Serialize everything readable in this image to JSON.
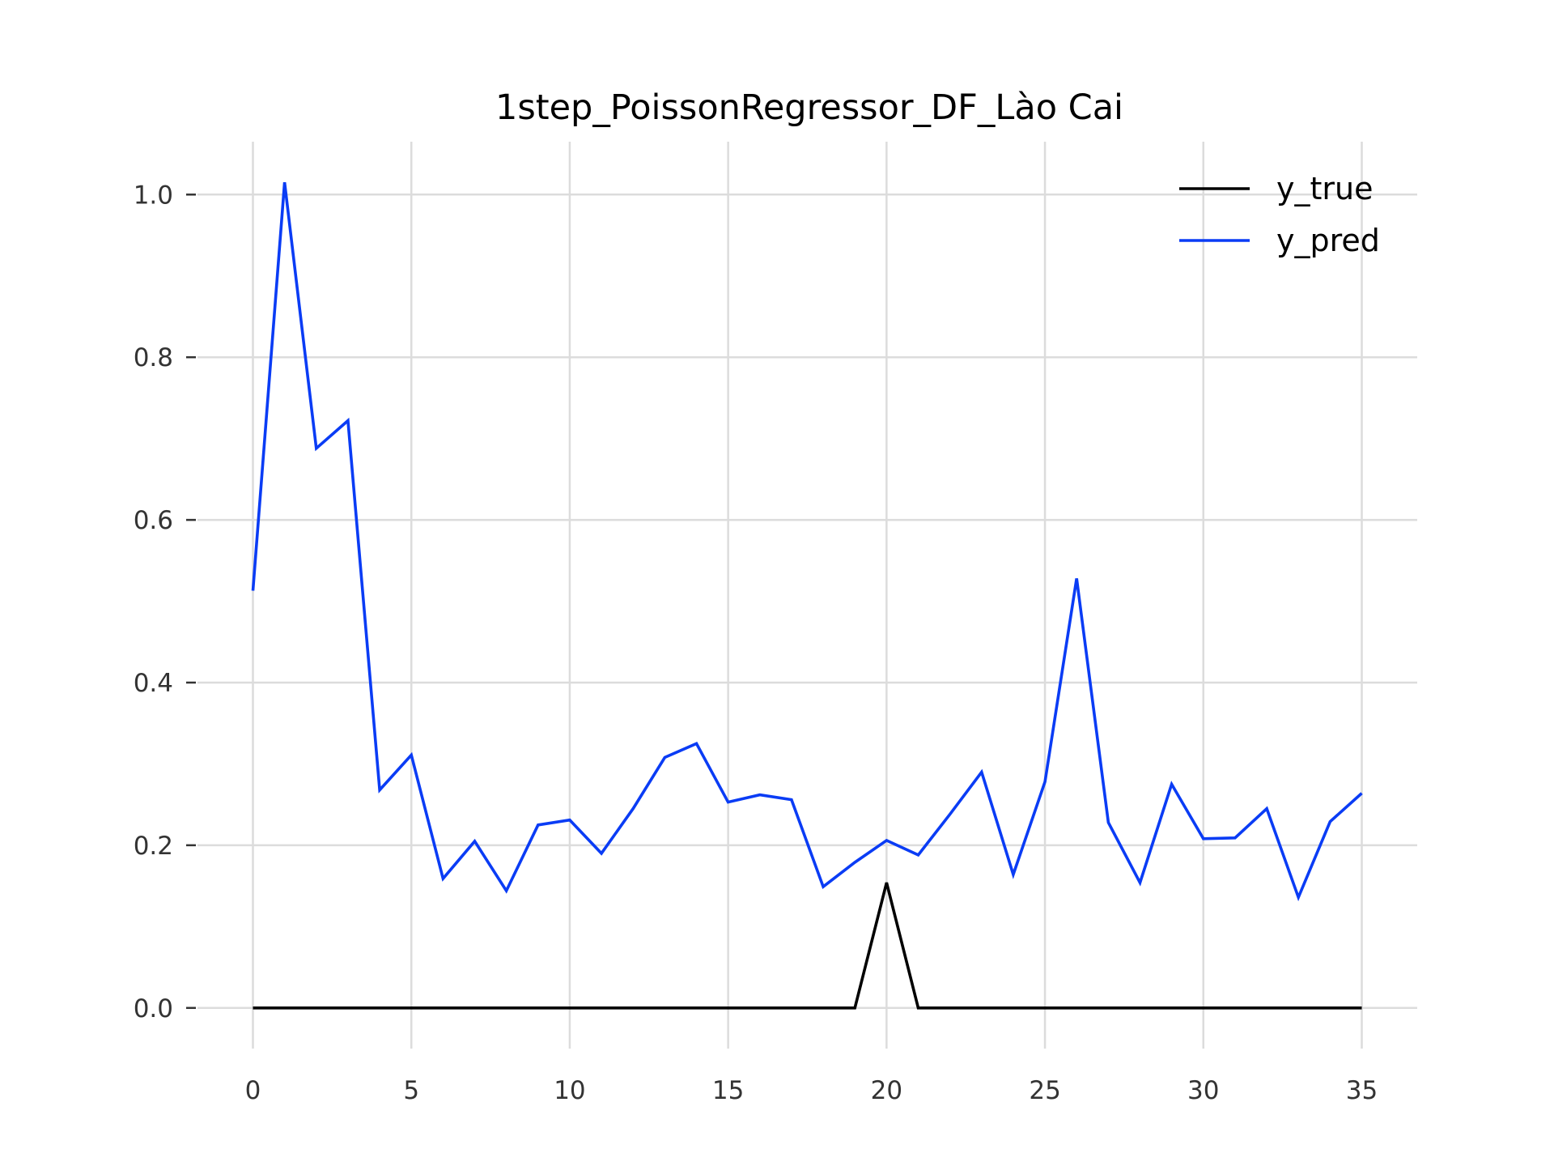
{
  "chart_data": {
    "type": "line",
    "title": "1step_PoissonRegressor_DF_Lào Cai",
    "xlabel": "",
    "ylabel": "",
    "xlim": [
      -1.75,
      36.75
    ],
    "ylim": [
      -0.05,
      1.065
    ],
    "xticks": [
      0,
      5,
      10,
      15,
      20,
      25,
      30,
      35
    ],
    "xtick_labels": [
      "0",
      "5",
      "10",
      "15",
      "20",
      "25",
      "30",
      "35"
    ],
    "yticks": [
      0.0,
      0.2,
      0.4,
      0.6,
      0.8,
      1.0
    ],
    "ytick_labels": [
      "0.0",
      "0.2",
      "0.4",
      "0.6",
      "0.8",
      "1.0"
    ],
    "grid": true,
    "legend_position": "top-right",
    "x": [
      0,
      1,
      2,
      3,
      4,
      5,
      6,
      7,
      8,
      9,
      10,
      11,
      12,
      13,
      14,
      15,
      16,
      17,
      18,
      19,
      20,
      21,
      22,
      23,
      24,
      25,
      26,
      27,
      28,
      29,
      30,
      31,
      32,
      33,
      34,
      35
    ],
    "series": [
      {
        "name": "y_true",
        "color": "#000000",
        "values": [
          0,
          0,
          0,
          0,
          0,
          0,
          0,
          0,
          0,
          0,
          0,
          0,
          0,
          0,
          0,
          0,
          0,
          0,
          0,
          0,
          0.154,
          0,
          0,
          0,
          0,
          0,
          0,
          0,
          0,
          0,
          0,
          0,
          0,
          0,
          0,
          0
        ]
      },
      {
        "name": "y_pred",
        "color": "#0a3cf5",
        "values": [
          0.513,
          1.015,
          0.688,
          0.722,
          0.268,
          0.311,
          0.159,
          0.205,
          0.144,
          0.225,
          0.231,
          0.19,
          0.245,
          0.308,
          0.325,
          0.253,
          0.262,
          0.256,
          0.149,
          0.179,
          0.206,
          0.188,
          0.238,
          0.29,
          0.164,
          0.278,
          0.528,
          0.228,
          0.154,
          0.275,
          0.208,
          0.209,
          0.245,
          0.136,
          0.229,
          0.264
        ]
      }
    ]
  }
}
